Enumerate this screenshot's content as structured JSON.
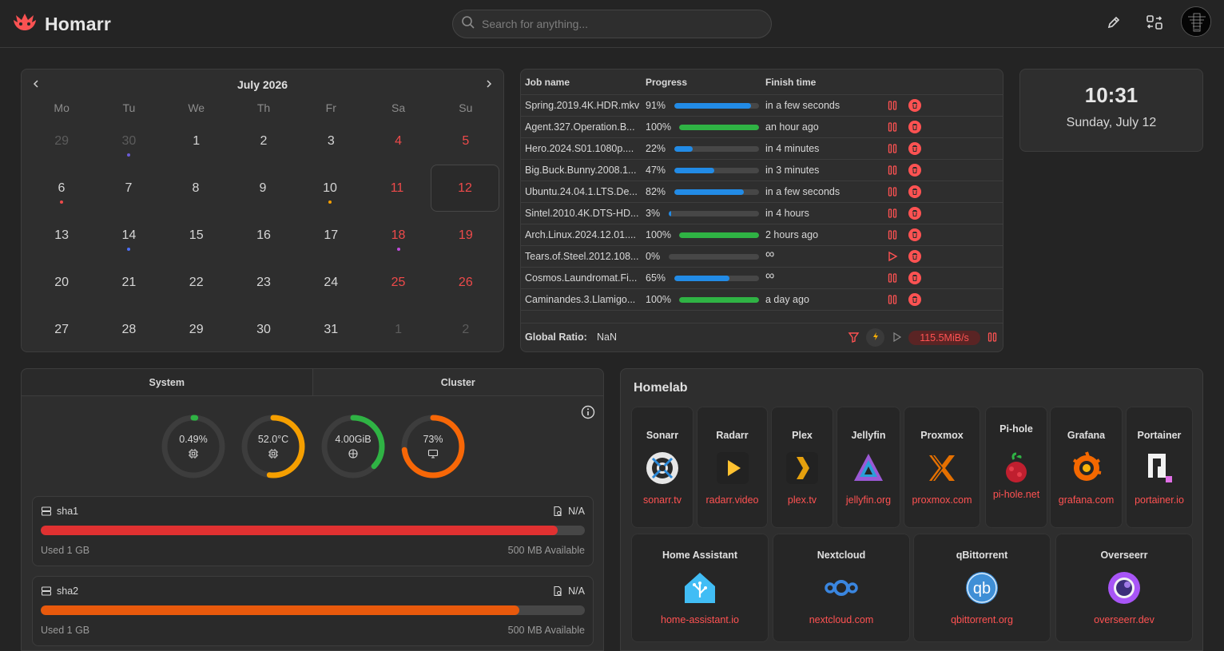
{
  "header": {
    "app_title": "Homarr",
    "search_placeholder": "Search for anything...",
    "icons": [
      "homarr-logo-icon",
      "search-icon",
      "pencil-icon",
      "switch-icon",
      "avatar"
    ]
  },
  "calendar": {
    "month_label": "July 2026",
    "weekdays": [
      "Mo",
      "Tu",
      "We",
      "Th",
      "Fr",
      "Sa",
      "Su"
    ],
    "weeks": [
      [
        {
          "d": "29",
          "m": true
        },
        {
          "d": "30",
          "m": true,
          "dot": "#6b5bd6"
        },
        {
          "d": "1"
        },
        {
          "d": "2"
        },
        {
          "d": "3"
        },
        {
          "d": "4",
          "w": true
        },
        {
          "d": "5",
          "w": true
        }
      ],
      [
        {
          "d": "6",
          "dot": "#ee4a4a"
        },
        {
          "d": "7"
        },
        {
          "d": "8"
        },
        {
          "d": "9"
        },
        {
          "d": "10",
          "dot": "#f59f00"
        },
        {
          "d": "11",
          "w": true
        },
        {
          "d": "12",
          "w": true,
          "today": true
        }
      ],
      [
        {
          "d": "13"
        },
        {
          "d": "14",
          "dot": "#4c6ef5"
        },
        {
          "d": "15"
        },
        {
          "d": "16"
        },
        {
          "d": "17"
        },
        {
          "d": "18",
          "w": true,
          "dot": "#be4bdb"
        },
        {
          "d": "19",
          "w": true
        }
      ],
      [
        {
          "d": "20"
        },
        {
          "d": "21"
        },
        {
          "d": "22"
        },
        {
          "d": "23"
        },
        {
          "d": "24"
        },
        {
          "d": "25",
          "w": true
        },
        {
          "d": "26",
          "w": true
        }
      ],
      [
        {
          "d": "27"
        },
        {
          "d": "28"
        },
        {
          "d": "29"
        },
        {
          "d": "30"
        },
        {
          "d": "31"
        },
        {
          "d": "1",
          "w": true,
          "m": true
        },
        {
          "d": "2",
          "w": true,
          "m": true
        }
      ]
    ]
  },
  "downloads": {
    "headers": {
      "job": "Job name",
      "progress": "Progress",
      "finish": "Finish time"
    },
    "rows": [
      {
        "name": "Spring.2019.4K.HDR.mkv",
        "progress": "91%",
        "fraction": 0.91,
        "finish": "in a few seconds",
        "state": "downloading"
      },
      {
        "name": "Agent.327.Operation.B...",
        "progress": "100%",
        "fraction": 1.0,
        "finish": "an hour ago",
        "state": "done"
      },
      {
        "name": "Hero.2024.S01.1080p....",
        "progress": "22%",
        "fraction": 0.22,
        "finish": "in 4 minutes",
        "state": "downloading"
      },
      {
        "name": "Big.Buck.Bunny.2008.1...",
        "progress": "47%",
        "fraction": 0.47,
        "finish": "in 3 minutes",
        "state": "downloading"
      },
      {
        "name": "Ubuntu.24.04.1.LTS.De...",
        "progress": "82%",
        "fraction": 0.82,
        "finish": "in a few seconds",
        "state": "downloading"
      },
      {
        "name": "Sintel.2010.4K.DTS-HD...",
        "progress": "3%",
        "fraction": 0.03,
        "finish": "in 4 hours",
        "state": "downloading"
      },
      {
        "name": "Arch.Linux.2024.12.01....",
        "progress": "100%",
        "fraction": 1.0,
        "finish": "2 hours ago",
        "state": "done"
      },
      {
        "name": "Tears.of.Steel.2012.108...",
        "progress": "0%",
        "fraction": 0.0,
        "finish": "∞",
        "state": "paused"
      },
      {
        "name": "Cosmos.Laundromat.Fi...",
        "progress": "65%",
        "fraction": 0.65,
        "finish": "∞",
        "state": "downloading"
      },
      {
        "name": "Caminandes.3.Llamigo...",
        "progress": "100%",
        "fraction": 1.0,
        "finish": "a day ago",
        "state": "done"
      }
    ],
    "footer": {
      "ratio_label": "Global Ratio:",
      "ratio_value": "NaN",
      "speed": "115.5MiB/s"
    },
    "colors": {
      "blue": "#228be6",
      "green": "#2fb344",
      "red": "#ff5252"
    }
  },
  "clock": {
    "time": "10:31",
    "date": "Sunday, July 12"
  },
  "system": {
    "tabs": [
      "System",
      "Cluster"
    ],
    "gauges": [
      {
        "label": "0.49%",
        "value": 0.0049,
        "color": "#2fb344",
        "icon": "cpu-icon"
      },
      {
        "label": "52.0°C",
        "value": 0.52,
        "color": "#f59f00",
        "icon": "cpu-temp-icon"
      },
      {
        "label": "4.00GiB",
        "value": 0.37,
        "color": "#2fb344",
        "icon": "memory-icon"
      },
      {
        "label": "73%",
        "value": 0.73,
        "color": "#f76707",
        "icon": "monitor-icon"
      }
    ],
    "disks": [
      {
        "name": "sha1",
        "na": "N/A",
        "used": "Used 1 GB",
        "avail": "500 MB Available",
        "fraction": 0.95,
        "color": "#e03131"
      },
      {
        "name": "sha2",
        "na": "N/A",
        "used": "Used 1 GB",
        "avail": "500 MB Available",
        "fraction": 0.88,
        "color": "#e8590c"
      }
    ]
  },
  "homelab": {
    "title": "Homelab",
    "apps_row1": [
      {
        "name": "Sonarr",
        "url": "sonarr.tv",
        "icon": "sonarr-icon"
      },
      {
        "name": "Radarr",
        "url": "radarr.video",
        "icon": "radarr-icon"
      },
      {
        "name": "Plex",
        "url": "plex.tv",
        "icon": "plex-icon"
      },
      {
        "name": "Jellyfin",
        "url": "jellyfin.org",
        "icon": "jellyfin-icon"
      },
      {
        "name": "Proxmox",
        "url": "proxmox.com",
        "icon": "proxmox-icon"
      },
      {
        "name": "Pi-hole",
        "url": "pi-hole.net",
        "icon": "pihole-icon"
      },
      {
        "name": "Grafana",
        "url": "grafana.com",
        "icon": "grafana-icon"
      },
      {
        "name": "Portainer",
        "url": "portainer.io",
        "icon": "portainer-icon"
      }
    ],
    "apps_row2": [
      {
        "name": "Home Assistant",
        "url": "home-assistant.io",
        "icon": "home-assistant-icon"
      },
      {
        "name": "Nextcloud",
        "url": "nextcloud.com",
        "icon": "nextcloud-icon"
      },
      {
        "name": "qBittorrent",
        "url": "qbittorrent.org",
        "icon": "qbittorrent-icon"
      },
      {
        "name": "Overseerr",
        "url": "overseerr.dev",
        "icon": "overseerr-icon"
      }
    ]
  }
}
